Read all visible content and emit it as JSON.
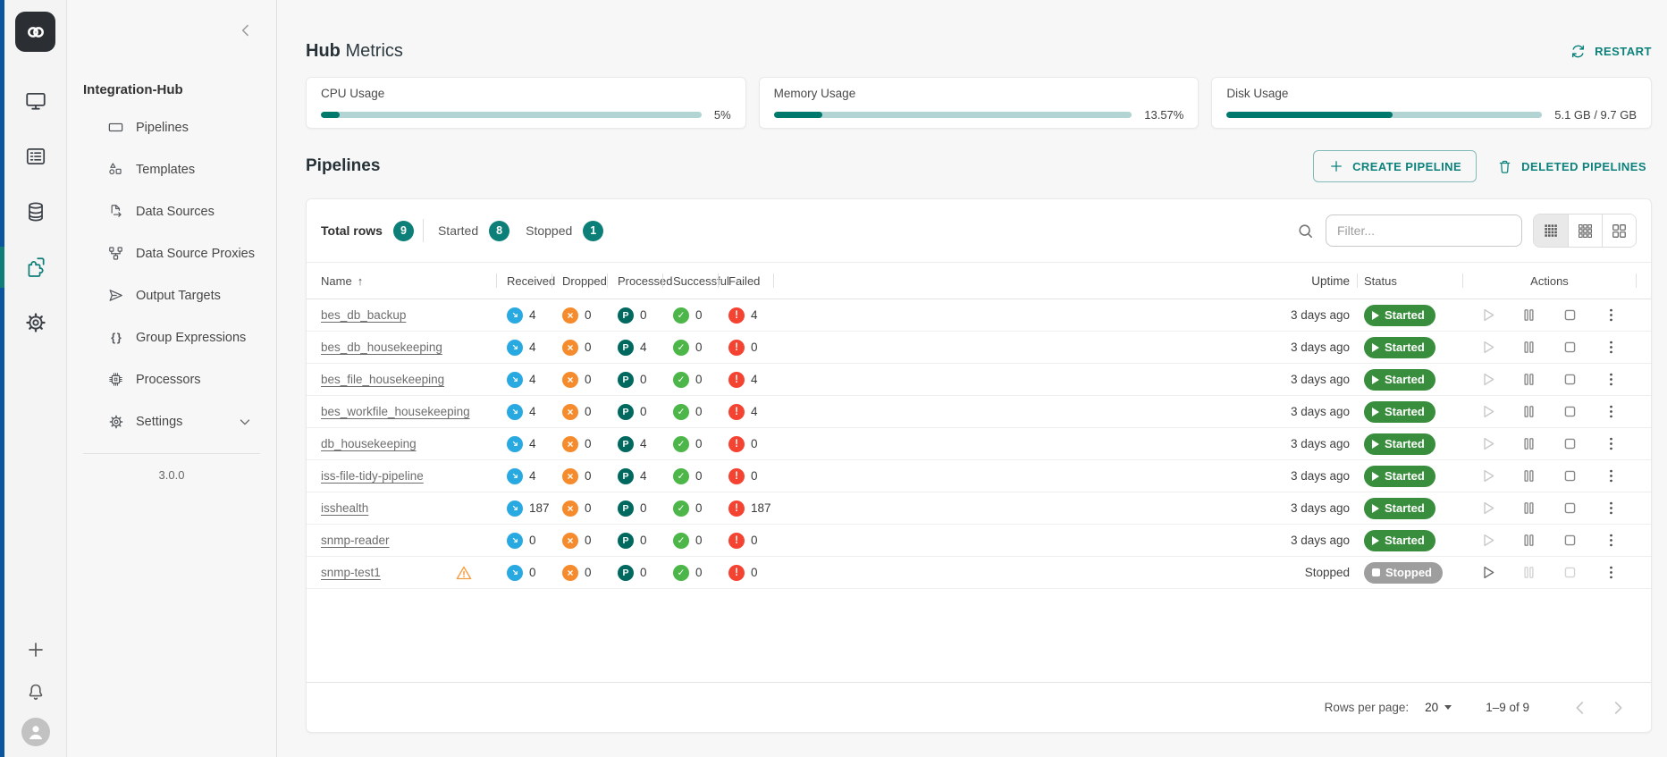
{
  "colors": {
    "accent": "#0d827c",
    "edge_strip": "#0b55a0",
    "active_indicator": "#107e78",
    "progress_fill": "#00796d",
    "progress_track": "#b2d4d2",
    "badge": "#0c7f78",
    "status_started": "#388e3c",
    "status_stopped": "#9e9e9e",
    "stat_received": "#29a9e1",
    "stat_dropped": "#f68b2d",
    "stat_processed": "#00695f",
    "stat_successful": "#4cb648",
    "stat_failed": "#f44331",
    "warning": "#f59b3d"
  },
  "icons": {
    "sort_asc_glyph": "↑",
    "braces_glyph": "{ }",
    "dropped_glyph": "×",
    "processed_glyph": "P",
    "successful_glyph": "✓",
    "failed_glyph": "!"
  },
  "sidebar": {
    "title": "Integration-Hub",
    "version": "3.0.0",
    "items": [
      {
        "label": "Pipelines"
      },
      {
        "label": "Templates"
      },
      {
        "label": "Data Sources"
      },
      {
        "label": "Data Source Proxies"
      },
      {
        "label": "Output Targets"
      },
      {
        "label": "Group Expressions"
      },
      {
        "label": "Processors"
      },
      {
        "label": "Settings"
      }
    ]
  },
  "header": {
    "title_primary": "Hub",
    "title_secondary": "Metrics",
    "restart_label": "RESTART"
  },
  "metrics": [
    {
      "label": "CPU Usage",
      "value": "5%",
      "percent": 5
    },
    {
      "label": "Memory Usage",
      "value": "13.57%",
      "percent": 13.57
    },
    {
      "label": "Disk Usage",
      "value": "5.1 GB / 9.7 GB",
      "percent": 52.6
    }
  ],
  "pipelines": {
    "title": "Pipelines",
    "create_label": "CREATE PIPELINE",
    "deleted_label": "DELETED PIPELINES"
  },
  "table": {
    "summary": {
      "total_label": "Total rows",
      "total_count": "9",
      "started_label": "Started",
      "started_count": "8",
      "stopped_label": "Stopped",
      "stopped_count": "1"
    },
    "filter_placeholder": "Filter...",
    "columns": {
      "name": "Name",
      "received": "Received",
      "dropped": "Dropped",
      "processed": "Processed",
      "successful": "Successful",
      "failed": "Failed",
      "uptime": "Uptime",
      "status": "Status",
      "actions": "Actions"
    },
    "rows": [
      {
        "name": "bes_db_backup",
        "received": "4",
        "dropped": "0",
        "processed": "0",
        "successful": "0",
        "failed": "4",
        "uptime": "3 days ago",
        "status": "Started",
        "warning": false
      },
      {
        "name": "bes_db_housekeeping",
        "received": "4",
        "dropped": "0",
        "processed": "4",
        "successful": "0",
        "failed": "0",
        "uptime": "3 days ago",
        "status": "Started",
        "warning": false
      },
      {
        "name": "bes_file_housekeeping",
        "received": "4",
        "dropped": "0",
        "processed": "0",
        "successful": "0",
        "failed": "4",
        "uptime": "3 days ago",
        "status": "Started",
        "warning": false
      },
      {
        "name": "bes_workfile_housekeeping",
        "received": "4",
        "dropped": "0",
        "processed": "0",
        "successful": "0",
        "failed": "4",
        "uptime": "3 days ago",
        "status": "Started",
        "warning": false
      },
      {
        "name": "db_housekeeping",
        "received": "4",
        "dropped": "0",
        "processed": "4",
        "successful": "0",
        "failed": "0",
        "uptime": "3 days ago",
        "status": "Started",
        "warning": false
      },
      {
        "name": "iss-file-tidy-pipeline",
        "received": "4",
        "dropped": "0",
        "processed": "4",
        "successful": "0",
        "failed": "0",
        "uptime": "3 days ago",
        "status": "Started",
        "warning": false
      },
      {
        "name": "isshealth",
        "received": "187",
        "dropped": "0",
        "processed": "0",
        "successful": "0",
        "failed": "187",
        "uptime": "3 days ago",
        "status": "Started",
        "warning": false
      },
      {
        "name": "snmp-reader",
        "received": "0",
        "dropped": "0",
        "processed": "0",
        "successful": "0",
        "failed": "0",
        "uptime": "3 days ago",
        "status": "Started",
        "warning": false
      },
      {
        "name": "snmp-test1",
        "received": "0",
        "dropped": "0",
        "processed": "0",
        "successful": "0",
        "failed": "0",
        "uptime": "Stopped",
        "status": "Stopped",
        "warning": true
      }
    ],
    "footer": {
      "rows_per_page_label": "Rows per page:",
      "rows_per_page": "20",
      "range_label": "1–9 of 9"
    }
  }
}
